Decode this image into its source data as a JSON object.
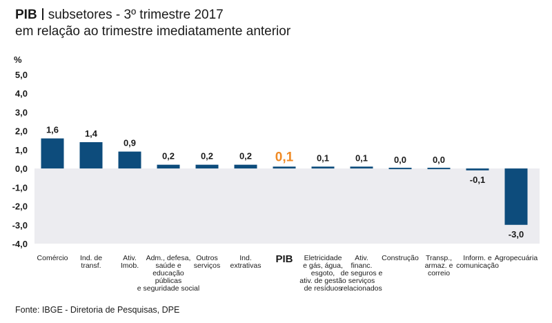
{
  "header": {
    "title_strong": "PIB",
    "title_rest": "subsetores - 3º trimestre 2017",
    "subtitle": "em relação ao trimestre imediatamente anterior"
  },
  "footer": {
    "source": "Fonte: IBGE - Diretoria de Pesquisas, DPE"
  },
  "colors": {
    "bar": "#0d4c7c",
    "highlight": "#f08a24",
    "negative_band": "#ececf0",
    "text": "#1a1a1a"
  },
  "chart_data": {
    "type": "bar",
    "title": "PIB | subsetores - 3º trimestre 2017",
    "subtitle": "em relação ao trimestre imediatamente anterior",
    "ylabel": "%",
    "ylim": [
      -4.0,
      5.0
    ],
    "yticks": [
      "5,0",
      "4,0",
      "3,0",
      "2,0",
      "1,0",
      "0,0",
      "-1,0",
      "-2,0",
      "-3,0",
      "-4,0"
    ],
    "ytick_values": [
      5,
      4,
      3,
      2,
      1,
      0,
      -1,
      -2,
      -3,
      -4
    ],
    "highlight_index": 6,
    "categories": [
      [
        "Comércio"
      ],
      [
        "Ind. de",
        "transf."
      ],
      [
        "Ativ.",
        "Imob."
      ],
      [
        "Adm., defesa,",
        "saúde e",
        "educação",
        "públicas",
        "e seguridade social"
      ],
      [
        "Outros",
        "serviços"
      ],
      [
        "Ind.",
        "extrativas"
      ],
      [
        "PIB"
      ],
      [
        "Eletricidade",
        "e gás, água,",
        "esgoto,",
        "ativ. de gestão",
        "de resíduos"
      ],
      [
        "Ativ.",
        "financ.",
        "de seguros e",
        "serviços",
        "relacionados"
      ],
      [
        "Construção"
      ],
      [
        "Transp.,",
        "armaz. e",
        "correio"
      ],
      [
        "Inform. e",
        "comunicação"
      ],
      [
        "Agropecuária"
      ]
    ],
    "values": [
      1.6,
      1.4,
      0.9,
      0.2,
      0.2,
      0.2,
      0.1,
      0.1,
      0.1,
      0.0,
      0.0,
      -0.1,
      -3.0
    ],
    "value_labels": [
      "1,6",
      "1,4",
      "0,9",
      "0,2",
      "0,2",
      "0,2",
      "0,1",
      "0,1",
      "0,1",
      "0,0",
      "0,0",
      "-0,1",
      "-3,0"
    ]
  }
}
